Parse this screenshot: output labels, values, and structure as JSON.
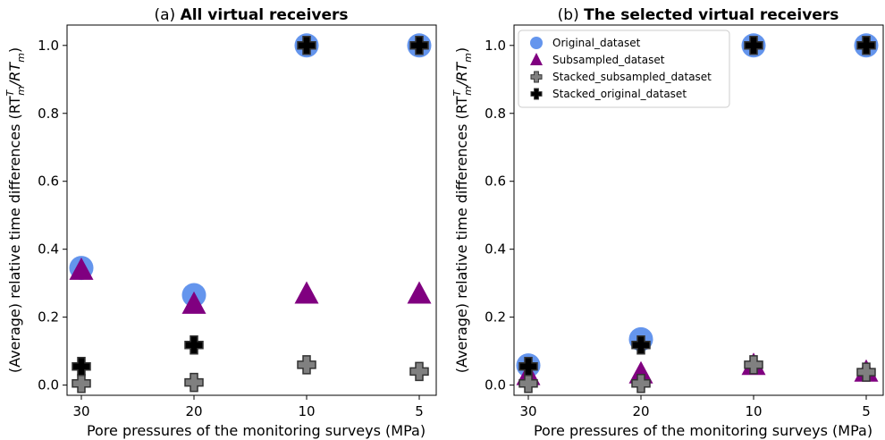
{
  "chart_data": [
    {
      "type": "scatter",
      "panel": "(a)",
      "title": "All virtual receivers",
      "xlabel": "Pore pressures of the monitoring surveys (MPa)",
      "ylabel": "(Average) relative time differences (RT",
      "ylabel_sup": "T",
      "ylabel_sub": "m",
      "ylabel_tail": "/RT",
      "ylabel_sub2": "m",
      "ylabel_end": ")",
      "categories": [
        "30",
        "20",
        "10",
        "5"
      ],
      "yticks": [
        "0.0",
        "0.2",
        "0.4",
        "0.6",
        "0.8",
        "1.0"
      ],
      "ylim": [
        -0.03,
        1.06
      ],
      "series": [
        {
          "name": "Original_dataset",
          "marker": "circle",
          "color": "#6495ED",
          "values": [
            0.345,
            0.265,
            1.0,
            1.0
          ]
        },
        {
          "name": "Subsampled_dataset",
          "marker": "triangle",
          "color": "#800080",
          "values": [
            0.335,
            0.235,
            0.265,
            0.265
          ]
        },
        {
          "name": "Stacked_subsampled_dataset",
          "marker": "plus",
          "color": "#808080",
          "values": [
            0.005,
            0.008,
            0.06,
            0.04
          ]
        },
        {
          "name": "Stacked_original_dataset",
          "marker": "plus",
          "color": "#000000",
          "values": [
            0.055,
            0.118,
            1.0,
            1.0
          ]
        }
      ],
      "legend": false
    },
    {
      "type": "scatter",
      "panel": "(b)",
      "title": "The selected virtual receivers",
      "xlabel": "Pore pressures of the monitoring surveys (MPa)",
      "ylabel": "(Average) relative time differences (RT",
      "ylabel_sup": "T",
      "ylabel_sub": "m",
      "ylabel_tail": "/RT",
      "ylabel_sub2": "m",
      "ylabel_end": ")",
      "categories": [
        "30",
        "20",
        "10",
        "5"
      ],
      "yticks": [
        "0.0",
        "0.2",
        "0.4",
        "0.6",
        "0.8",
        "1.0"
      ],
      "ylim": [
        -0.03,
        1.06
      ],
      "series": [
        {
          "name": "Original_dataset",
          "marker": "circle",
          "color": "#6495ED",
          "values": [
            0.058,
            0.135,
            1.0,
            1.0
          ]
        },
        {
          "name": "Subsampled_dataset",
          "marker": "triangle",
          "color": "#800080",
          "values": [
            0.025,
            0.03,
            0.055,
            0.035
          ]
        },
        {
          "name": "Stacked_subsampled_dataset",
          "marker": "plus",
          "color": "#808080",
          "values": [
            0.005,
            0.005,
            0.06,
            0.038
          ]
        },
        {
          "name": "Stacked_original_dataset",
          "marker": "plus",
          "color": "#000000",
          "values": [
            0.055,
            0.118,
            1.0,
            1.0
          ]
        }
      ],
      "legend": true,
      "legend_placement": "top-left"
    }
  ]
}
